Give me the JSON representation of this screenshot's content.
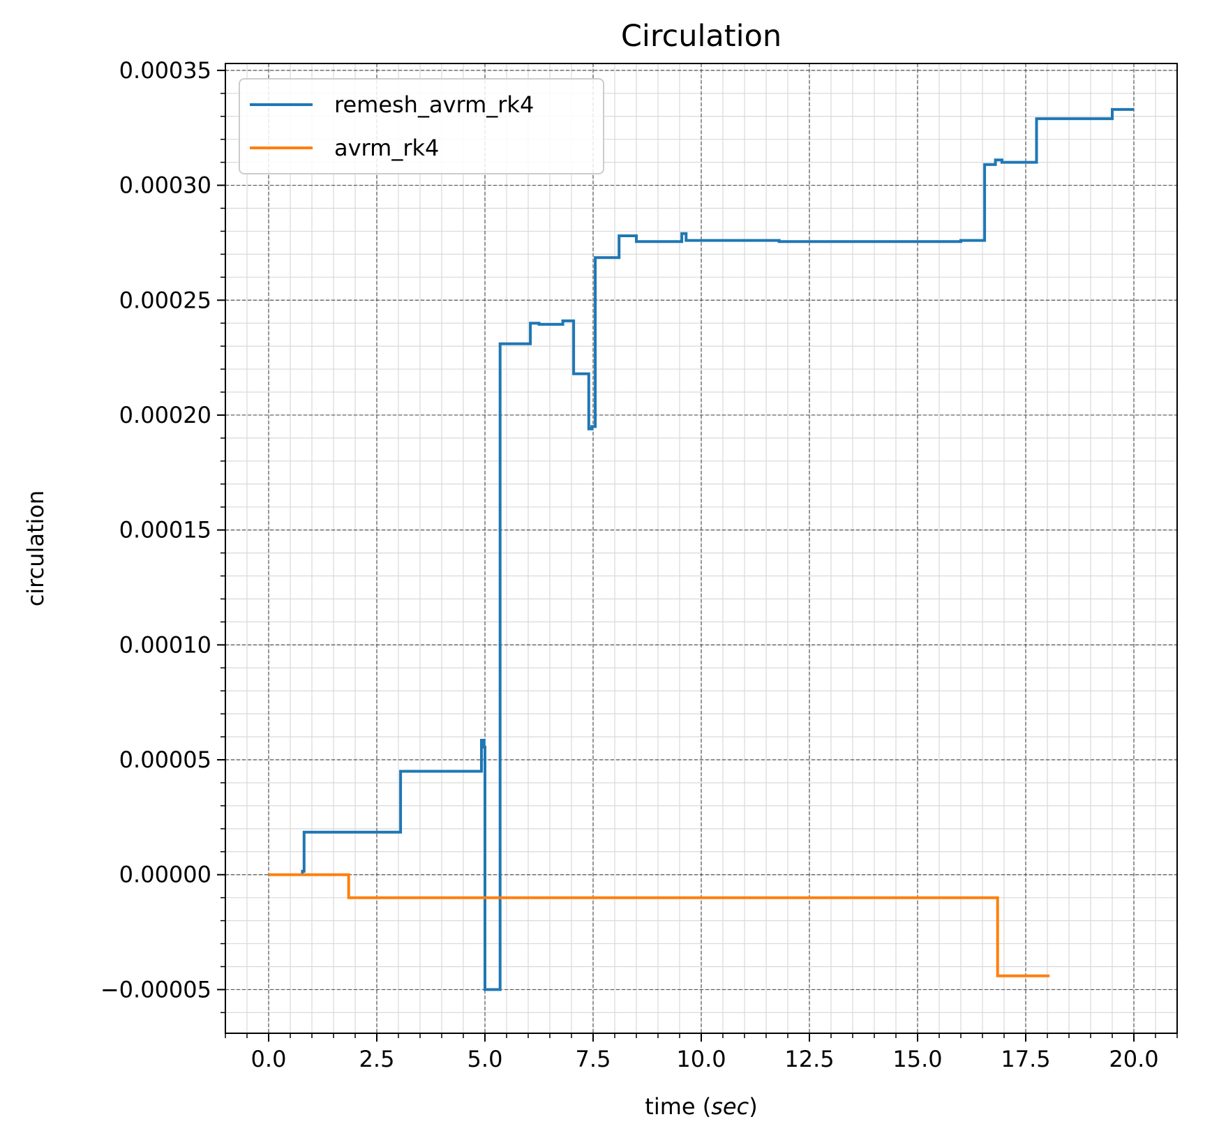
{
  "chart_data": {
    "type": "line",
    "title": "Circulation",
    "xlabel_prefix": "time (",
    "xlabel_unit": "sec",
    "xlabel_suffix": ")",
    "ylabel": "circulation",
    "xlim": [
      -1.0,
      21.0
    ],
    "ylim": [
      -6.9e-05,
      0.000353
    ],
    "xticks": [
      0.0,
      2.5,
      5.0,
      7.5,
      10.0,
      12.5,
      15.0,
      17.5,
      20.0
    ],
    "xtick_labels": [
      "0.0",
      "2.5",
      "5.0",
      "7.5",
      "10.0",
      "12.5",
      "15.0",
      "17.5",
      "20.0"
    ],
    "yticks": [
      -5e-05,
      0,
      5e-05,
      0.0001,
      0.00015,
      0.0002,
      0.00025,
      0.0003,
      0.00035
    ],
    "ytick_labels": [
      "−0.00005",
      "0.00000",
      "0.00005",
      "0.00010",
      "0.00015",
      "0.00020",
      "0.00025",
      "0.00030",
      "0.00035"
    ],
    "grid": true,
    "minor_grid": true,
    "legend_position": "top-left",
    "series": [
      {
        "name": "remesh_avrm_rk4",
        "color": "#1f77b4",
        "x": [
          0.78,
          0.78,
          0.82,
          0.82,
          3.05,
          3.05,
          4.92,
          4.92,
          4.98,
          4.98,
          5.0,
          5.0,
          5.35,
          5.35,
          6.05,
          6.05,
          6.25,
          6.25,
          6.8,
          6.8,
          7.05,
          7.05,
          7.4,
          7.4,
          7.47,
          7.47,
          7.55,
          7.55,
          8.1,
          8.1,
          8.5,
          8.5,
          9.55,
          9.55,
          9.65,
          9.65,
          11.8,
          11.8,
          16.0,
          16.0,
          16.55,
          16.55,
          16.8,
          16.8,
          16.95,
          16.95,
          17.15,
          17.15,
          17.75,
          17.75,
          19.5,
          19.5,
          20.0
        ],
        "y": [
          0.0,
          1.5e-06,
          1.5e-06,
          1.85e-05,
          1.85e-05,
          4.5e-05,
          4.5e-05,
          5.85e-05,
          5.85e-05,
          5.55e-05,
          5.55e-05,
          -5e-05,
          -5e-05,
          0.000231,
          0.000231,
          0.00024,
          0.00024,
          0.0002395,
          0.0002395,
          0.000241,
          0.000241,
          0.000218,
          0.000218,
          0.000194,
          0.000194,
          0.000195,
          0.000195,
          0.0002685,
          0.0002685,
          0.000278,
          0.000278,
          0.0002755,
          0.0002755,
          0.000279,
          0.000279,
          0.000276,
          0.000276,
          0.0002755,
          0.0002755,
          0.000276,
          0.000276,
          0.000309,
          0.000309,
          0.000311,
          0.000311,
          0.00031,
          0.00031,
          0.00031,
          0.00031,
          0.000329,
          0.000329,
          0.000333,
          0.000333
        ]
      },
      {
        "name": "avrm_rk4",
        "color": "#ff7f0e",
        "x": [
          0.0,
          1.85,
          1.85,
          16.85,
          16.85,
          18.05
        ],
        "y": [
          0.0,
          0.0,
          -1e-05,
          -1e-05,
          -4.4e-05,
          -4.4e-05
        ]
      }
    ]
  }
}
